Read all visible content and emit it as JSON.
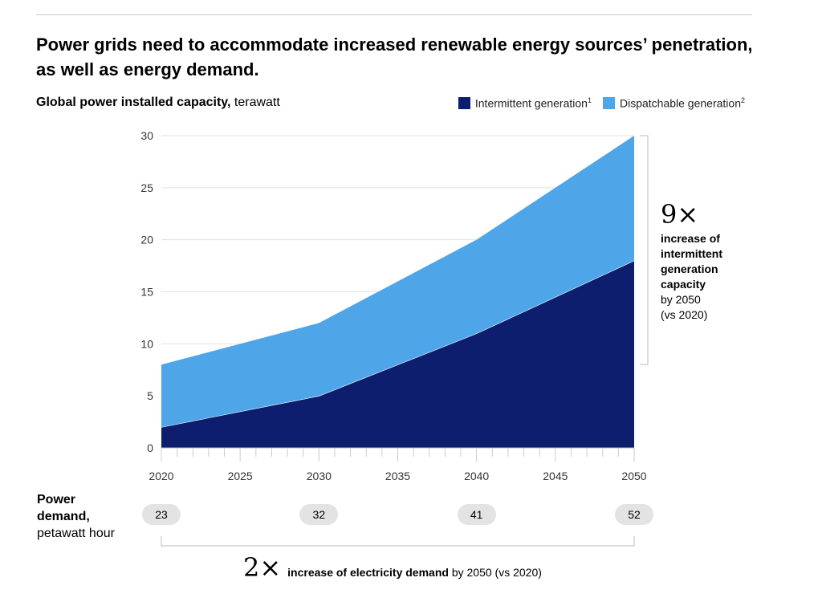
{
  "title": "Power grids need to accommodate increased renewable energy sources’ penetration, as well as energy demand.",
  "chart_data": {
    "type": "area",
    "stacked": true,
    "title": "Power grids need to accommodate increased renewable energy sources’ penetration, as well as energy demand.",
    "ylabel_bold": "Global power installed capacity,",
    "ylabel_unit": "terawatt",
    "x": [
      2020,
      2030,
      2040,
      2050
    ],
    "xticks": [
      "2020",
      "2025",
      "2030",
      "2035",
      "2040",
      "2045",
      "2050"
    ],
    "yticks": [
      "0",
      "5",
      "10",
      "15",
      "20",
      "25",
      "30"
    ],
    "ylim": [
      0,
      30
    ],
    "xlim": [
      2020,
      2050
    ],
    "grid": true,
    "legend_position": "top-right",
    "series": [
      {
        "name": "Intermittent generation",
        "footnote": "1",
        "color": "#0d1e6e",
        "values": [
          2,
          5,
          11,
          18
        ]
      },
      {
        "name": "Dispatchable generation",
        "footnote": "2",
        "color": "#4ea6e8",
        "values": [
          6,
          7,
          9,
          12
        ]
      }
    ]
  },
  "annotation_capacity": {
    "multiplier": "9×",
    "bold_lines": [
      "increase of",
      "intermittent",
      "generation",
      "capacity"
    ],
    "lines": [
      "by 2050",
      "(vs 2020)"
    ]
  },
  "demand": {
    "label_bold_1": "Power",
    "label_bold_2": "demand,",
    "label_unit": "petawatt hour",
    "years": [
      2020,
      2030,
      2040,
      2050
    ],
    "values": [
      "23",
      "32",
      "41",
      "52"
    ]
  },
  "annotation_demand": {
    "multiplier": "2×",
    "bold": "increase of electricity demand",
    "rest": "by 2050 (vs 2020)"
  }
}
